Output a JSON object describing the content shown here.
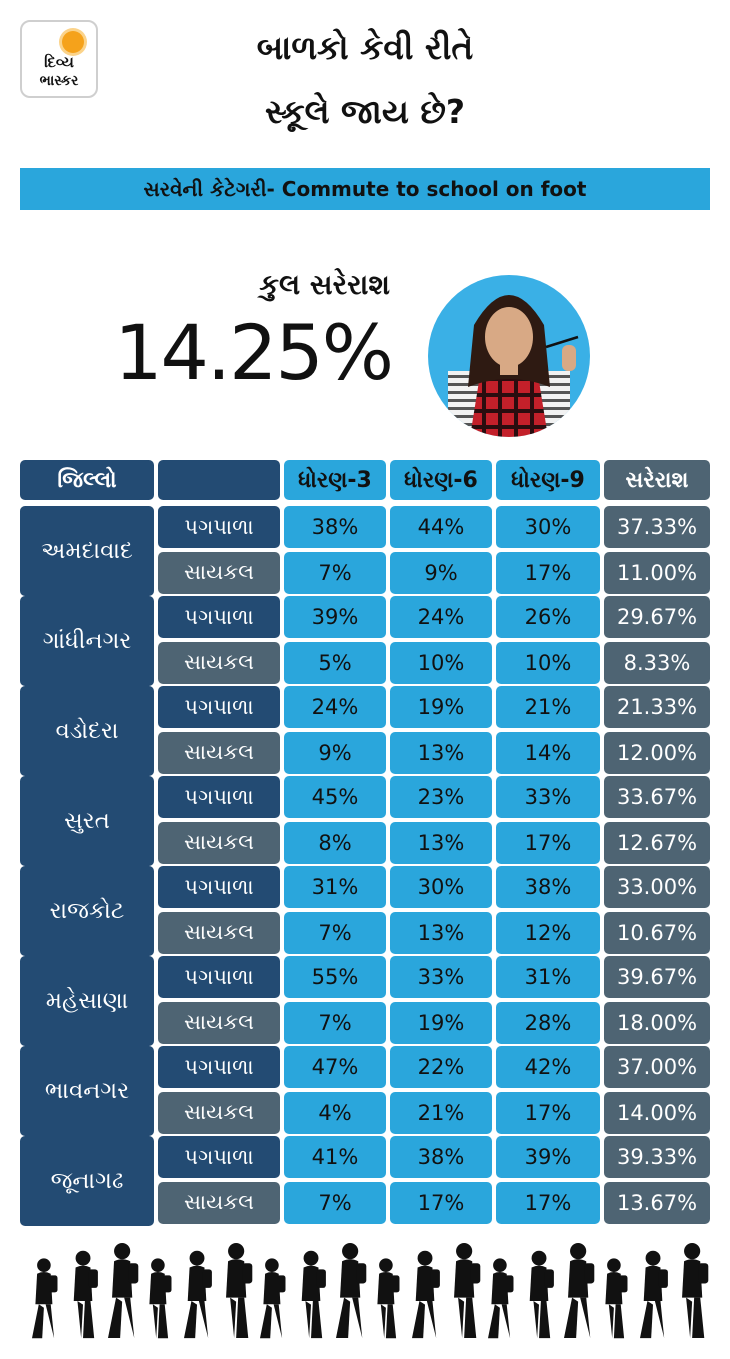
{
  "logo": {
    "line1": "દિવ્ય",
    "line2": "ભાસ્કર"
  },
  "header": {
    "title_line1": "બાળકો કેવી રીતે",
    "title_line2": "સ્કૂલે જાય છે?"
  },
  "banner": "સરવેની કેટેગરી- Commute to school on foot",
  "overall": {
    "label": "કુલ સરેરાશ",
    "value": "14.25%"
  },
  "colors": {
    "dark_blue": "#234b73",
    "sky_blue": "#2aa6dc",
    "slate": "#4e6473"
  },
  "table": {
    "headers": [
      "જિલ્લો",
      "",
      "ધોરણ-3",
      "ધોરણ-6",
      "ધોરણ-9",
      "સરેરાશ"
    ],
    "rows": [
      {
        "district": "અમદાવાદ",
        "modes": [
          {
            "mode": "પગપાળા",
            "values": [
              "38%",
              "44%",
              "30%"
            ],
            "avg": "37.33%"
          },
          {
            "mode": "સાયકલ",
            "values": [
              "7%",
              "9%",
              "17%"
            ],
            "avg": "11.00%"
          }
        ]
      },
      {
        "district": "ગાંધીનગર",
        "modes": [
          {
            "mode": "પગપાળા",
            "values": [
              "39%",
              "24%",
              "26%"
            ],
            "avg": "29.67%"
          },
          {
            "mode": "સાયકલ",
            "values": [
              "5%",
              "10%",
              "10%"
            ],
            "avg": "8.33%"
          }
        ]
      },
      {
        "district": "વડોદરા",
        "modes": [
          {
            "mode": "પગપાળા",
            "values": [
              "24%",
              "19%",
              "21%"
            ],
            "avg": "21.33%"
          },
          {
            "mode": "સાયકલ",
            "values": [
              "9%",
              "13%",
              "14%"
            ],
            "avg": "12.00%"
          }
        ]
      },
      {
        "district": "સુરત",
        "modes": [
          {
            "mode": "પગપાળા",
            "values": [
              "45%",
              "23%",
              "33%"
            ],
            "avg": "33.67%"
          },
          {
            "mode": "સાયકલ",
            "values": [
              "8%",
              "13%",
              "17%"
            ],
            "avg": "12.67%"
          }
        ]
      },
      {
        "district": "રાજકોટ",
        "modes": [
          {
            "mode": "પગપાળા",
            "values": [
              "31%",
              "30%",
              "38%"
            ],
            "avg": "33.00%"
          },
          {
            "mode": "સાયકલ",
            "values": [
              "7%",
              "13%",
              "12%"
            ],
            "avg": "10.67%"
          }
        ]
      },
      {
        "district": "મહેસાણા",
        "modes": [
          {
            "mode": "પગપાળા",
            "values": [
              "55%",
              "33%",
              "31%"
            ],
            "avg": "39.67%"
          },
          {
            "mode": "સાયકલ",
            "values": [
              "7%",
              "19%",
              "28%"
            ],
            "avg": "18.00%"
          }
        ]
      },
      {
        "district": "ભાવનગર",
        "modes": [
          {
            "mode": "પગપાળા",
            "values": [
              "47%",
              "22%",
              "42%"
            ],
            "avg": "37.00%"
          },
          {
            "mode": "સાયકલ",
            "values": [
              "4%",
              "21%",
              "17%"
            ],
            "avg": "14.00%"
          }
        ]
      },
      {
        "district": "જૂનાગઢ",
        "modes": [
          {
            "mode": "પગપાળા",
            "values": [
              "41%",
              "38%",
              "39%"
            ],
            "avg": "39.33%"
          },
          {
            "mode": "સાયકલ",
            "values": [
              "7%",
              "17%",
              "17%"
            ],
            "avg": "13.67%"
          }
        ]
      }
    ]
  },
  "chart_data": {
    "type": "table",
    "title": "બાળકો કેવી રીતે સ્કૂલે જાય છે?",
    "subtitle": "સરવેની કેટેગરી- Commute to school on foot",
    "columns": [
      "જિલ્લો",
      "",
      "ધોરણ-3",
      "ધોરણ-6",
      "ધોરણ-9",
      "સરેરાશ"
    ],
    "overall_average": 14.25,
    "categories": [
      "અમદાવાદ",
      "ગાંધીનગર",
      "વડોદરા",
      "સુરત",
      "રાજકોટ",
      "મહેસાણા",
      "ભાવનગર",
      "જૂનાગઢ"
    ],
    "series": [
      {
        "name": "પગપાળા",
        "grade3": [
          38,
          39,
          24,
          45,
          31,
          55,
          47,
          41
        ],
        "grade6": [
          44,
          24,
          19,
          23,
          30,
          33,
          22,
          38
        ],
        "grade9": [
          30,
          26,
          21,
          33,
          38,
          31,
          42,
          39
        ],
        "average": [
          37.33,
          29.67,
          21.33,
          33.67,
          33.0,
          39.67,
          37.0,
          39.33
        ]
      },
      {
        "name": "સાયકલ",
        "grade3": [
          7,
          5,
          9,
          8,
          7,
          7,
          4,
          7
        ],
        "grade6": [
          9,
          10,
          13,
          13,
          13,
          19,
          21,
          17
        ],
        "grade9": [
          17,
          10,
          14,
          17,
          12,
          28,
          17,
          17
        ],
        "average": [
          11.0,
          8.33,
          12.0,
          12.67,
          10.67,
          18.0,
          14.0,
          13.67
        ]
      }
    ]
  }
}
